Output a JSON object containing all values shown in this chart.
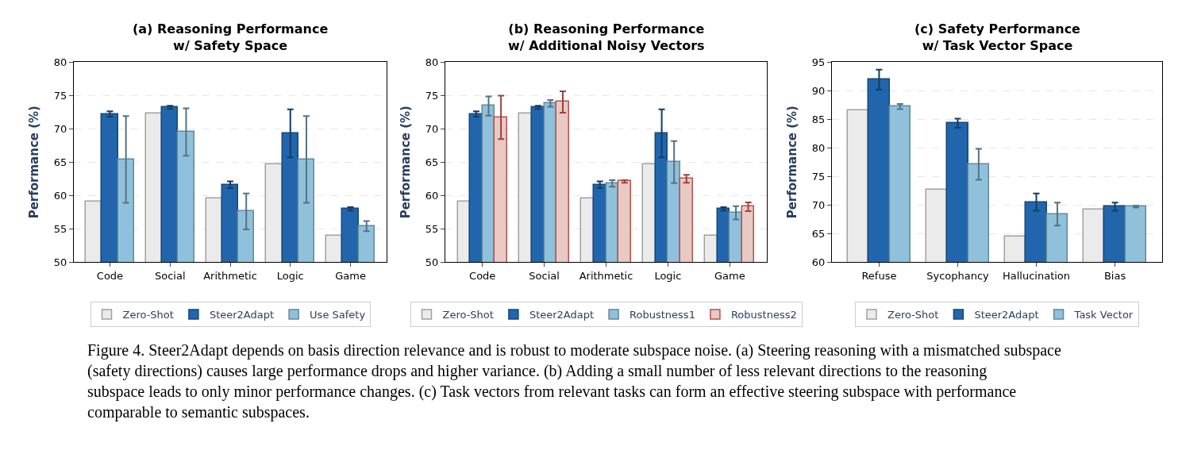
{
  "chart_data": [
    {
      "type": "bar",
      "title": "(a) Reasoning Performance\nw/ Safety Space",
      "ylabel": "Performance (%)",
      "categories": [
        "Code",
        "Social",
        "Arithmetic",
        "Logic",
        "Game"
      ],
      "ylim": [
        50,
        80
      ],
      "yticks": [
        50,
        55,
        60,
        65,
        70,
        75,
        80
      ],
      "grid": "y",
      "legend": "bottom",
      "series": [
        {
          "name": "Zero-Shot",
          "color": "#ebebeb",
          "values": [
            59.1,
            72.3,
            59.6,
            64.6,
            53.9
          ]
        },
        {
          "name": "Steer2Adapt",
          "color": "#2166ac",
          "values": [
            72.2,
            73.2,
            61.6,
            69.3,
            58.0
          ],
          "errors": [
            0.4,
            0.25,
            0.5,
            3.6,
            0.25
          ]
        },
        {
          "name": "Use Safety",
          "color": "#8fc1dc",
          "values": [
            65.4,
            69.5,
            57.6,
            65.4,
            55.4
          ],
          "errors": [
            6.5,
            3.55,
            2.7,
            6.5,
            0.75
          ]
        }
      ],
      "annotations": [
        "Figure 4. Steer2Adapt depends on basis direction relevance and is robust to moderate subspace noise. (a) Steering reasoning with a mismatched subspace (safety directions) causes large performance drops and higher variance. (b) Adding a small number of less relevant directions to the reasoning subspace leads to only minor performance changes. (c) Task vectors from relevant tasks can form an effective steering subspace with performance comparable to semantic subspaces."
      ]
    },
    {
      "type": "bar",
      "title": "(b) Reasoning Performance\nw/ Additional Noisy Vectors",
      "ylabel": "Performance (%)",
      "categories": [
        "Code",
        "Social",
        "Arithmetic",
        "Logic",
        "Game"
      ],
      "ylim": [
        50,
        80
      ],
      "yticks": [
        50,
        55,
        60,
        65,
        70,
        75,
        80
      ],
      "grid": "y",
      "legend": "bottom",
      "series": [
        {
          "name": "Zero-Shot",
          "color": "#ebebeb",
          "values": [
            59.1,
            72.3,
            59.6,
            64.6,
            53.9
          ]
        },
        {
          "name": "Steer2Adapt",
          "color": "#2166ac",
          "values": [
            72.2,
            73.2,
            61.6,
            69.3,
            58.0
          ],
          "errors": [
            0.4,
            0.25,
            0.5,
            3.6,
            0.25
          ]
        },
        {
          "name": "Robustness1",
          "color": "#8fc1dc",
          "values": [
            73.4,
            73.8,
            61.8,
            65.0,
            57.4
          ],
          "errors": [
            1.45,
            0.5,
            0.5,
            3.15,
            1.0
          ]
        },
        {
          "name": "Robustness2",
          "color": "#e8c9c4",
          "values": [
            71.7,
            74.0,
            62.1,
            62.5,
            58.3
          ],
          "errors": [
            3.25,
            1.6,
            0.2,
            0.6,
            0.65
          ]
        }
      ]
    },
    {
      "type": "bar",
      "title": "(c) Safety Performance\nw/ Task Vector Space",
      "ylabel": "Performance (%)",
      "categories": [
        "Refuse",
        "Sycophancy",
        "Hallucination",
        "Bias"
      ],
      "ylim": [
        60,
        95
      ],
      "yticks": [
        60,
        65,
        70,
        75,
        80,
        85,
        90,
        95
      ],
      "grid": "y",
      "legend": "bottom",
      "series": [
        {
          "name": "Zero-Shot",
          "color": "#ebebeb",
          "values": [
            86.5,
            72.6,
            64.5,
            69.2
          ]
        },
        {
          "name": "Steer2Adapt",
          "color": "#2166ac",
          "values": [
            91.9,
            84.3,
            70.5,
            69.7
          ],
          "errors": [
            1.75,
            0.8,
            1.5,
            0.7
          ]
        },
        {
          "name": "Task Vector",
          "color": "#8fc1dc",
          "values": [
            87.2,
            77.1,
            68.4,
            69.7
          ],
          "errors": [
            0.45,
            2.7,
            2.0,
            0.15
          ]
        }
      ]
    }
  ]
}
